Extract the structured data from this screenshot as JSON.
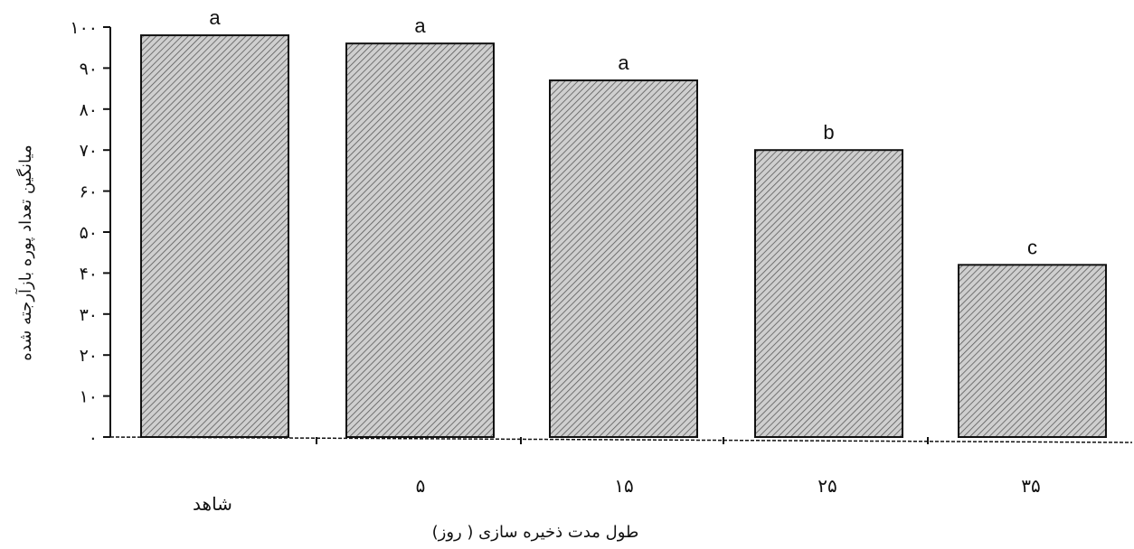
{
  "chart_data": {
    "type": "bar",
    "categories": [
      "شاهد",
      "۵",
      "۱۵",
      "۲۵",
      "۳۵"
    ],
    "values": [
      98,
      96,
      87,
      70,
      42
    ],
    "significance_letters": [
      "a",
      "a",
      "a",
      "b",
      "c"
    ],
    "ylim": [
      0,
      100
    ],
    "yticks": [
      0,
      10,
      20,
      30,
      40,
      50,
      60,
      70,
      80,
      90,
      100
    ],
    "ytick_labels": [
      "۰",
      "۱۰",
      "۲۰",
      "۳۰",
      "۴۰",
      "۵۰",
      "۶۰",
      "۷۰",
      "۸۰",
      "۹۰",
      "۱۰۰"
    ],
    "xlabel": "طول مدت ذخیره سازی ( روز)",
    "ylabel": "میانگین تعداد پوره بازآرجته شده",
    "grid": false,
    "bar_fill": "#c9c9c9",
    "bar_stroke": "#111111"
  }
}
